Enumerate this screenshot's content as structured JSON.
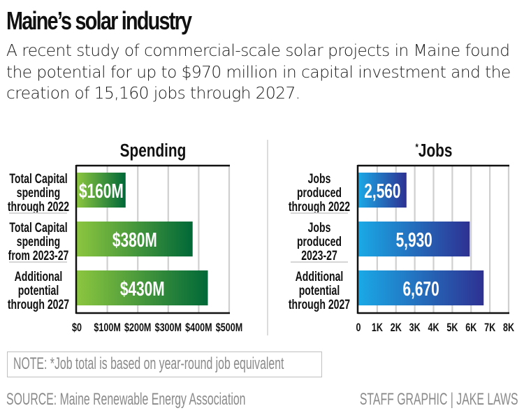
{
  "header": {
    "title": "Maine’s solar industry",
    "subtitle": "A recent study of commercial-scale solar projects in Maine found the potential for up to $970 million in capital investment and the creation of 15,160 jobs through 2027."
  },
  "colors": {
    "spending_gradient": [
      "#8cc63f",
      "#006838"
    ],
    "jobs_gradient": [
      "#1aa9e6",
      "#2e3192"
    ],
    "axis": "#111111",
    "gridline": "#cfcfcf",
    "separator": "#d6d6d6",
    "footer_text": "#8a8a8a"
  },
  "chart_data": [
    {
      "type": "bar",
      "orientation": "horizontal",
      "title": "Spending",
      "categories": [
        [
          "Total Capital",
          "spending",
          "through 2022"
        ],
        [
          "Total Capital",
          "spending",
          "from 2023-27"
        ],
        [
          "Additional",
          "potential",
          "through 2027"
        ]
      ],
      "values": [
        160,
        380,
        430
      ],
      "data_labels": [
        "$160M",
        "$380M",
        "$430M"
      ],
      "unit": "millions of dollars",
      "xlim": [
        0,
        500
      ],
      "ticks": [
        0,
        100,
        200,
        300,
        400,
        500
      ],
      "tick_labels": [
        "$0",
        "$100M",
        "$200M",
        "$300M",
        "$400M",
        "$500M"
      ],
      "grid": true,
      "xlabel": "",
      "ylabel": ""
    },
    {
      "type": "bar",
      "orientation": "horizontal",
      "title": "*Jobs",
      "title_marker": "*",
      "title_text": "Jobs",
      "categories": [
        [
          "Jobs",
          "produced",
          "through 2022"
        ],
        [
          "Jobs",
          "produced",
          "2023-27"
        ],
        [
          "Additional",
          "potential",
          "through 2027"
        ]
      ],
      "values": [
        2560,
        5930,
        6670
      ],
      "data_labels": [
        "2,560",
        "5,930",
        "6,670"
      ],
      "unit": "jobs",
      "xlim": [
        0,
        8000
      ],
      "ticks": [
        0,
        1000,
        2000,
        3000,
        4000,
        5000,
        6000,
        7000,
        8000
      ],
      "tick_labels": [
        "0",
        "1K",
        "2K",
        "3K",
        "4K",
        "5K",
        "6K",
        "7K",
        "8K"
      ],
      "grid": true,
      "xlabel": "",
      "ylabel": ""
    }
  ],
  "footer": {
    "note": "NOTE: *Job total is based on year-round job equivalent",
    "source": "SOURCE: Maine Renewable Energy Association",
    "credit": "STAFF GRAPHIC | JAKE LAWS"
  }
}
